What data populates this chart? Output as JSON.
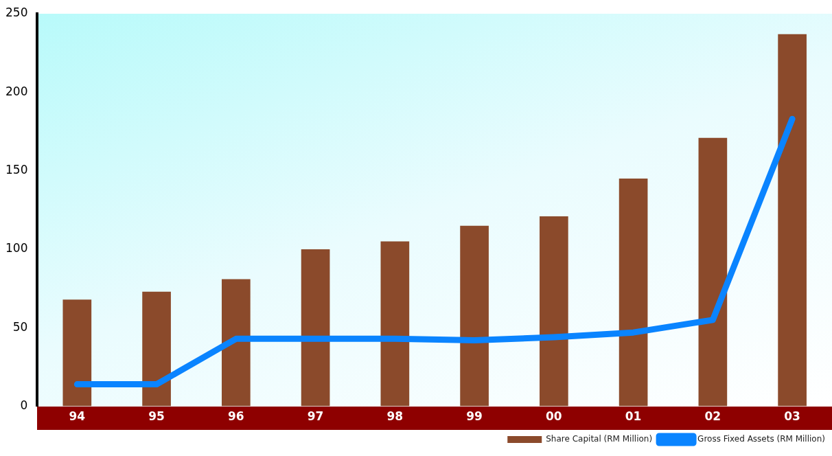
{
  "chart_data": {
    "type": "bar",
    "categories": [
      "94",
      "95",
      "96",
      "97",
      "98",
      "99",
      "00",
      "01",
      "02",
      "03"
    ],
    "series": [
      {
        "name": "Share Capital (RM Million)",
        "color": "#8b4a2b",
        "values": [
          68,
          73,
          81,
          100,
          105,
          115,
          121,
          145,
          171,
          237
        ]
      },
      {
        "name": "Gross Fixed Assets (RM Million)",
        "type": "line",
        "color": "#0a84ff",
        "values": [
          14,
          14,
          43,
          43,
          43,
          42,
          44,
          47,
          55,
          183
        ]
      }
    ],
    "ylim": [
      0,
      250
    ],
    "yticks": [
      0,
      50,
      100,
      150,
      200,
      250
    ],
    "grid": false,
    "legend": "bottom right",
    "marker": "none",
    "line_style": "solid"
  }
}
